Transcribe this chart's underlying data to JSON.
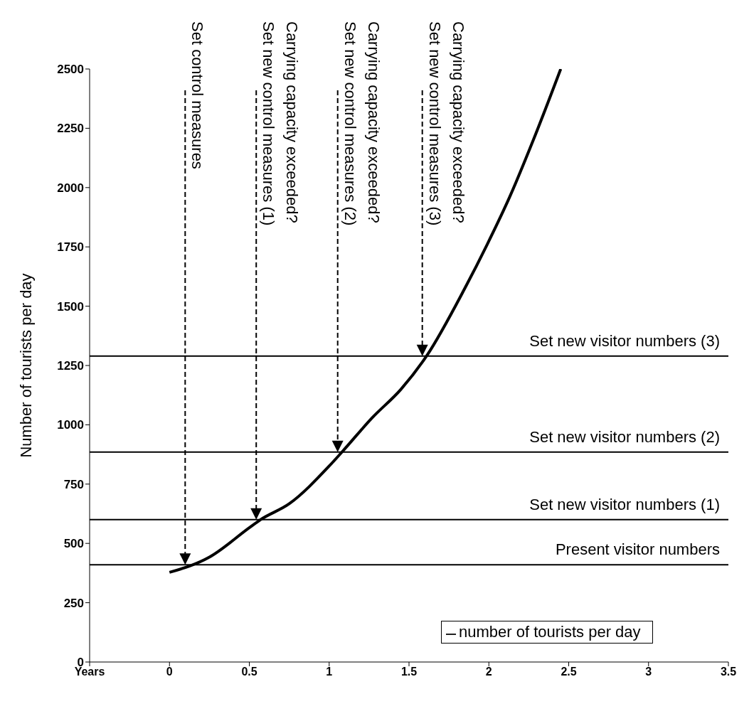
{
  "chart_data": {
    "type": "line",
    "ylabel": "Number of tourists per day",
    "x": [
      0,
      0.25,
      0.5,
      0.57,
      0.75,
      1.0,
      1.08,
      1.27,
      1.45,
      1.61,
      1.85,
      1.99,
      2.13,
      2.28,
      2.45
    ],
    "series": [
      {
        "name": "number of tourists per day",
        "color": "#000000",
        "values": [
          378,
          442,
          566,
          600,
          667,
          826,
          885,
          1030,
          1150,
          1290,
          1576,
          1761,
          1960,
          2203,
          2500
        ]
      }
    ],
    "xlim": [
      -0.5,
      3.5
    ],
    "xticks": [
      {
        "value": -0.5,
        "label": "Years"
      },
      0,
      0.5,
      1,
      1.5,
      2,
      2.5,
      3,
      3.5
    ],
    "ylim": [
      0,
      2500
    ],
    "yticks": [
      0,
      250,
      500,
      750,
      1000,
      1250,
      1500,
      1750,
      2000,
      2250,
      2500
    ],
    "ref_lines": [
      {
        "axis": "y",
        "value": 410,
        "label": "Present visitor numbers",
        "color": "#000000"
      },
      {
        "axis": "y",
        "value": 600,
        "label": "Set new visitor numbers (1)",
        "color": "#000000"
      },
      {
        "axis": "y",
        "value": 885,
        "label": "Set new visitor numbers (2)",
        "color": "#000000"
      },
      {
        "axis": "y",
        "value": 1290,
        "label": "Set new visitor numbers (3)",
        "color": "#000000"
      }
    ],
    "annotations": [
      "Set control measures",
      "Carrying capacity exceeded?\nSet new control measures (1)",
      "Carrying capacity exceeded?\nSet new control measures (2)",
      "Carrying capacity exceeded?\nSet new control measures (3)"
    ],
    "legend": "bottom right",
    "grid": false
  }
}
